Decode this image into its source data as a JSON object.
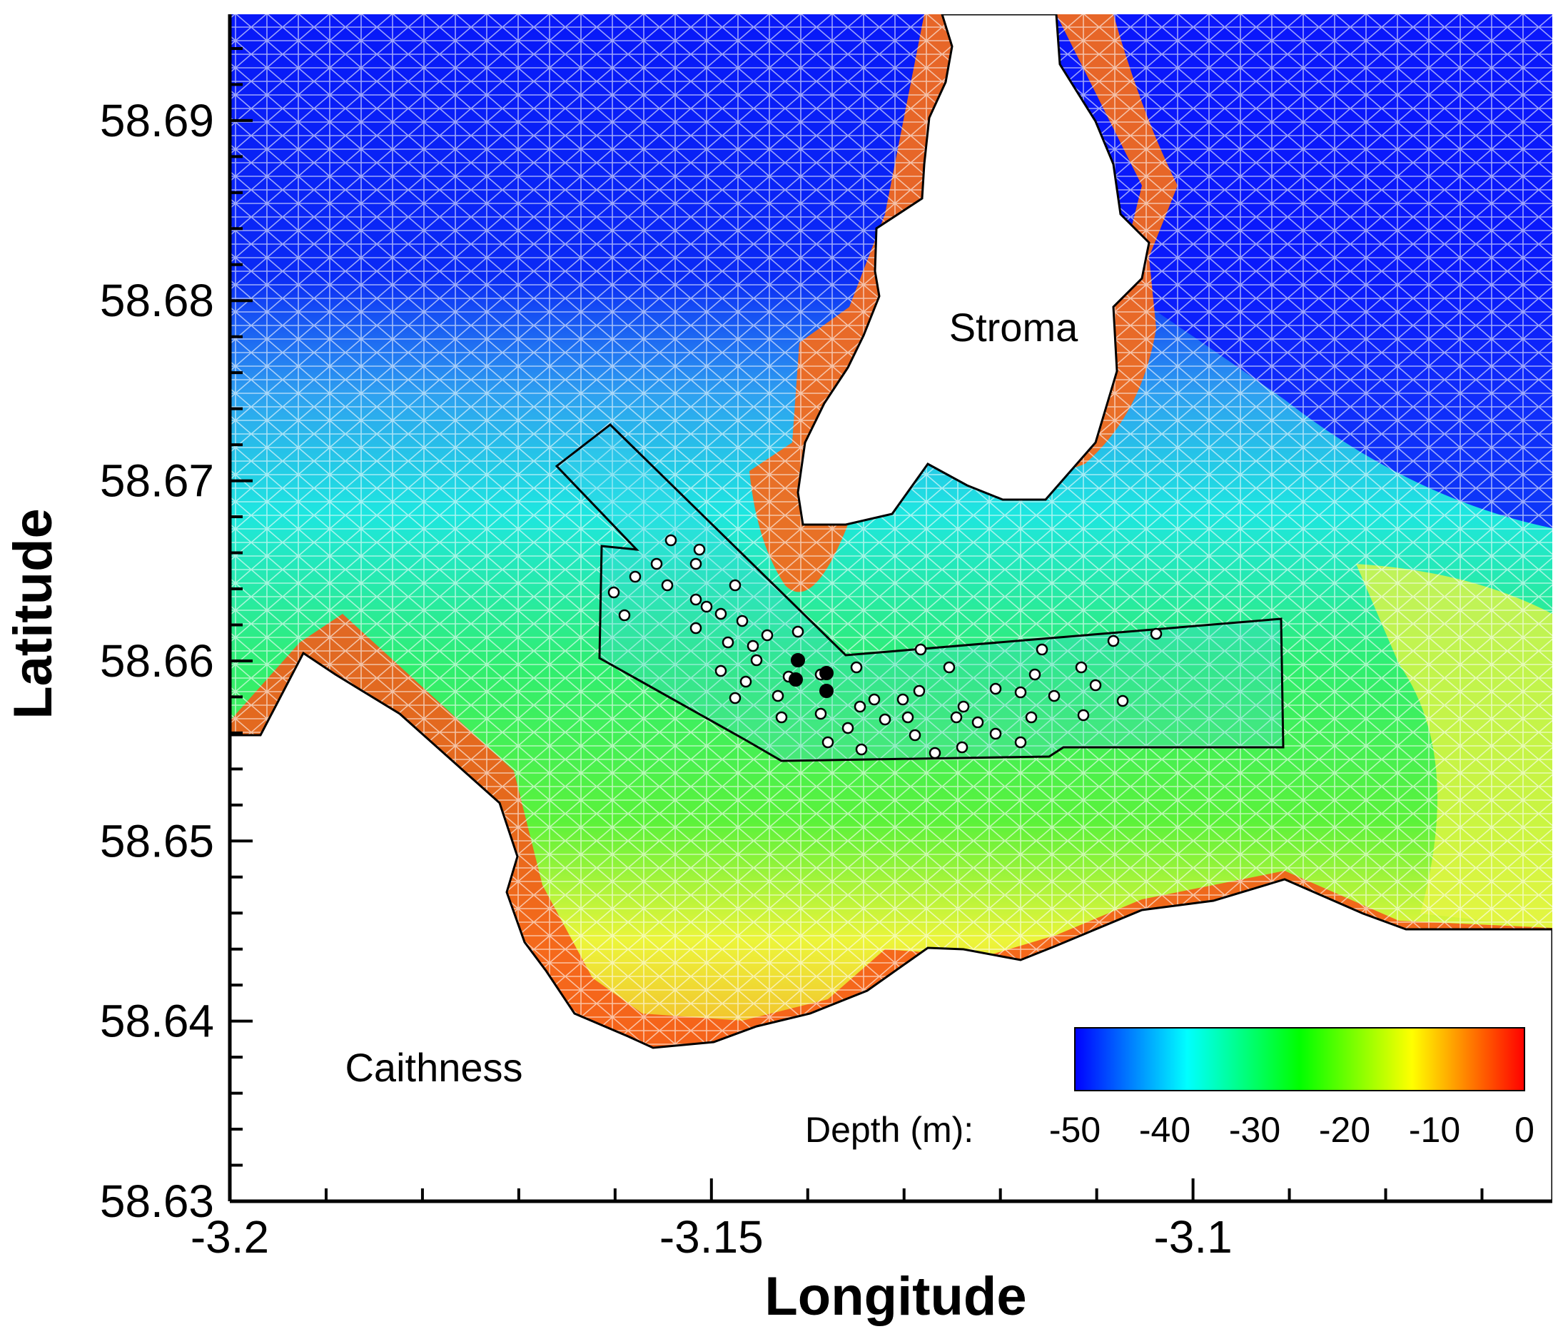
{
  "map": {
    "x_axis": {
      "title": "Longitude",
      "ticks": [
        "-3.2",
        "-3.15",
        "-3.1"
      ],
      "range": [
        -3.2,
        -3.0627
      ]
    },
    "y_axis": {
      "title": "Latitude",
      "ticks": [
        "58.63",
        "58.64",
        "58.65",
        "58.66",
        "58.67",
        "58.68",
        "58.69"
      ],
      "range": [
        58.63,
        58.6959
      ]
    },
    "places": {
      "island": "Stroma",
      "mainland": "Caithness"
    },
    "colorbar": {
      "label": "Depth (m):",
      "ticks": [
        "-50",
        "-40",
        "-30",
        "-20",
        "-10",
        "0"
      ],
      "colors": [
        "#0000ff",
        "#00ffff",
        "#00ff00",
        "#ffff00",
        "#ff0000"
      ]
    },
    "colors": {
      "deep": "#0a10ff",
      "shallow": "#ff4400",
      "land": "#ffffff",
      "mesh": "#ffffff",
      "outline": "#000000"
    }
  }
}
